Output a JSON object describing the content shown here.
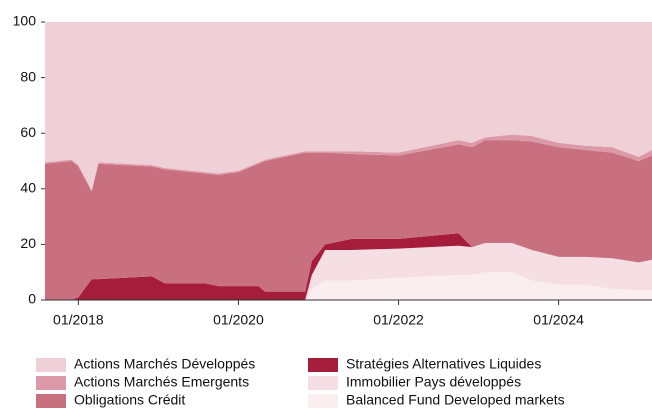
{
  "chart_data": {
    "type": "area",
    "stacked": true,
    "x": [
      "2017-08",
      "2017-12",
      "2018-01",
      "2018-03",
      "2018-04",
      "2018-12",
      "2019-02",
      "2019-08",
      "2019-10",
      "2020-01",
      "2020-04",
      "2020-05",
      "2020-11",
      "2020-12",
      "2021-02",
      "2021-06",
      "2022-01",
      "2022-10",
      "2022-12",
      "2023-02",
      "2023-06",
      "2023-09",
      "2024-01",
      "2024-05",
      "2024-09",
      "2025-01",
      "2025-03"
    ],
    "series": [
      {
        "name": "Actions Marchés Développés",
        "color": "#f0d0d7",
        "values": [
          50.5,
          49.5,
          51.5,
          60.5,
          50.5,
          51.5,
          52.5,
          54,
          54.5,
          53.5,
          50.5,
          49.5,
          46.5,
          46.5,
          46.5,
          46.5,
          47,
          42.5,
          43.5,
          41.5,
          40.5,
          41,
          43.5,
          44.5,
          45,
          48.5,
          46
        ]
      },
      {
        "name": "Actions Marchés Emergents",
        "color": "#dc9aa8",
        "values": [
          0.5,
          0.5,
          0.5,
          0.5,
          0.5,
          0.5,
          0.5,
          0.5,
          0.5,
          0.5,
          0.5,
          0.5,
          0.5,
          0.5,
          0.5,
          1,
          1,
          1.5,
          1.5,
          1,
          2,
          2,
          1.5,
          1.5,
          2,
          1.5,
          2
        ]
      },
      {
        "name": "Obligations Crédit",
        "color": "#c8707f",
        "values": [
          49,
          50,
          47,
          31.5,
          41.5,
          39.5,
          41,
          39.5,
          40,
          41,
          44,
          47,
          50,
          39,
          33,
          30.5,
          30,
          32,
          36,
          37,
          37,
          39,
          39.5,
          38.5,
          38,
          36.5,
          37.5
        ]
      },
      {
        "name": "Stratégies Alternatives Liquides",
        "color": "#a61d3c",
        "values": [
          0,
          0,
          1,
          7.5,
          7.5,
          8.5,
          6,
          6,
          5,
          5,
          5,
          3,
          3,
          5,
          2,
          4,
          3.5,
          4.5,
          0,
          0,
          0,
          0,
          0,
          0,
          0,
          0,
          0
        ]
      },
      {
        "name": "Immobilier Pays développés",
        "color": "#f5dfe4",
        "values": [
          0,
          0,
          0,
          0,
          0,
          0,
          0,
          0,
          0,
          0,
          0,
          0,
          0,
          5,
          11,
          11,
          10.5,
          10.5,
          10,
          10.5,
          10.5,
          11,
          10,
          10,
          11,
          10,
          11
        ]
      },
      {
        "name": "Balanced Fund Developed markets",
        "color": "#fbeef0",
        "values": [
          0,
          0,
          0,
          0,
          0,
          0,
          0,
          0,
          0,
          0,
          0,
          0,
          0,
          4,
          7,
          7,
          8,
          9,
          9,
          10,
          10,
          7,
          5.5,
          5.5,
          4,
          3.5,
          3.5
        ]
      }
    ],
    "xlim": [
      "2017-08",
      "2025-03"
    ],
    "xticks": [
      {
        "value": "2018-01",
        "label": "01/2018"
      },
      {
        "value": "2020-01",
        "label": "01/2020"
      },
      {
        "value": "2022-01",
        "label": "01/2022"
      },
      {
        "value": "2024-01",
        "label": "01/2024"
      }
    ],
    "ylim": [
      0,
      100
    ],
    "yticks": [
      0,
      20,
      40,
      60,
      80,
      100
    ]
  }
}
